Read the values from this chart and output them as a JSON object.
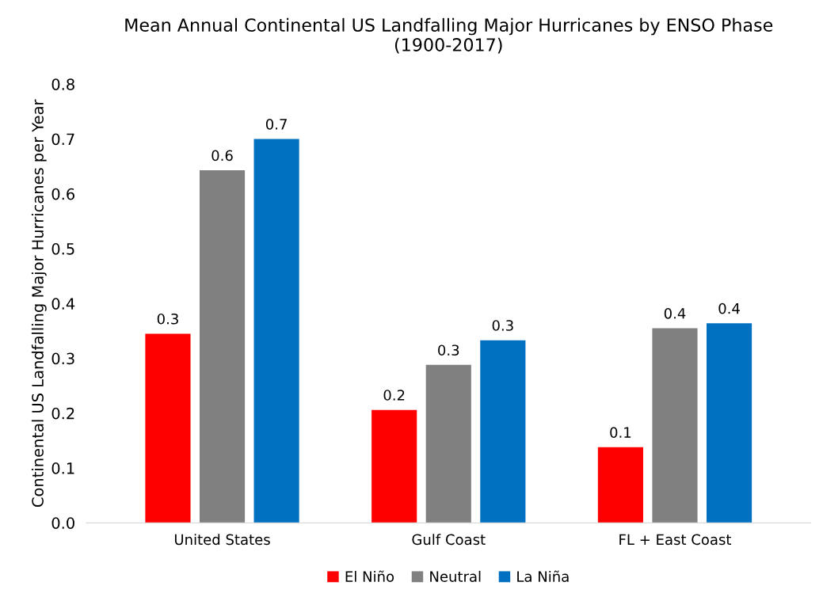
{
  "chart_data": {
    "type": "bar",
    "title": "Mean Annual Continental US Landfalling Major Hurricanes by ENSO Phase\n(1900-2017)",
    "ylabel": "Continental US Landfalling Major Hurricanes per Year",
    "categories": [
      "United States",
      "Gulf Coast",
      "FL + East Coast"
    ],
    "series": [
      {
        "name": "El Niño",
        "color": "#ff0000",
        "values": [
          0.345,
          0.206,
          0.138
        ],
        "value_labels": [
          "0.3",
          "0.2",
          "0.1"
        ]
      },
      {
        "name": "Neutral",
        "color": "#808080",
        "values": [
          0.643,
          0.288,
          0.355
        ],
        "value_labels": [
          "0.6",
          "0.3",
          "0.4"
        ]
      },
      {
        "name": "La Niña",
        "color": "#0070c0",
        "values": [
          0.7,
          0.333,
          0.364
        ],
        "value_labels": [
          "0.7",
          "0.3",
          "0.4"
        ]
      }
    ],
    "ylim": [
      0,
      0.8
    ],
    "yticks": [
      {
        "value": 0,
        "label": "0.0"
      },
      0.1,
      0.2,
      0.3,
      0.4,
      0.5,
      0.6,
      0.7,
      0.8
    ],
    "grid": false,
    "legend": "bottom"
  }
}
